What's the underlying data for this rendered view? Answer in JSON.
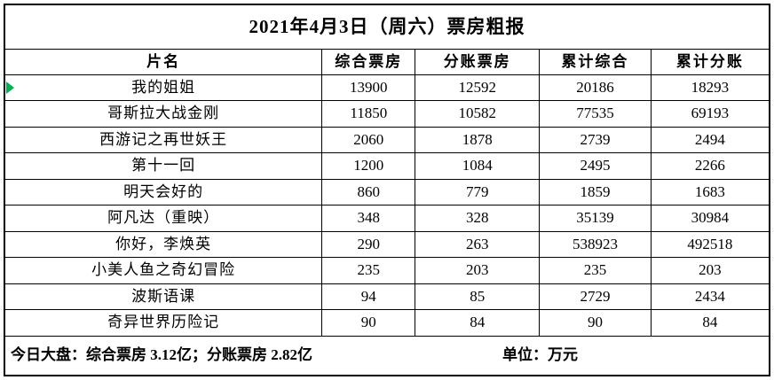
{
  "chart_data": {
    "type": "table",
    "title": "2021年4月3日（周六）票房粗报",
    "columns": [
      "片名",
      "综合票房",
      "分账票房",
      "累计综合",
      "累计分账"
    ],
    "rows": [
      [
        "我的姐姐",
        13900,
        12592,
        20186,
        18293
      ],
      [
        "哥斯拉大战金刚",
        11850,
        10582,
        77535,
        69193
      ],
      [
        "西游记之再世妖王",
        2060,
        1878,
        2739,
        2494
      ],
      [
        "第十一回",
        1200,
        1084,
        2495,
        2266
      ],
      [
        "明天会好的",
        860,
        779,
        1859,
        1683
      ],
      [
        "阿凡达（重映）",
        348,
        328,
        35139,
        30984
      ],
      [
        "你好，李焕英",
        290,
        263,
        538923,
        492518
      ],
      [
        "小美人鱼之奇幻冒险",
        235,
        203,
        235,
        203
      ],
      [
        "波斯语课",
        94,
        85,
        2729,
        2434
      ],
      [
        "奇异世界历险记",
        90,
        84,
        90,
        84
      ]
    ],
    "unit": "万元",
    "daily_total": {
      "综合票房": "3.12亿",
      "分账票房": "2.82亿"
    }
  },
  "footer": {
    "summary": "今日大盘：综合票房 3.12亿；分账票房 2.82亿",
    "unit": "单位：万元"
  },
  "marker": {
    "name": "green-triangle-marker",
    "color": "#00b050"
  }
}
